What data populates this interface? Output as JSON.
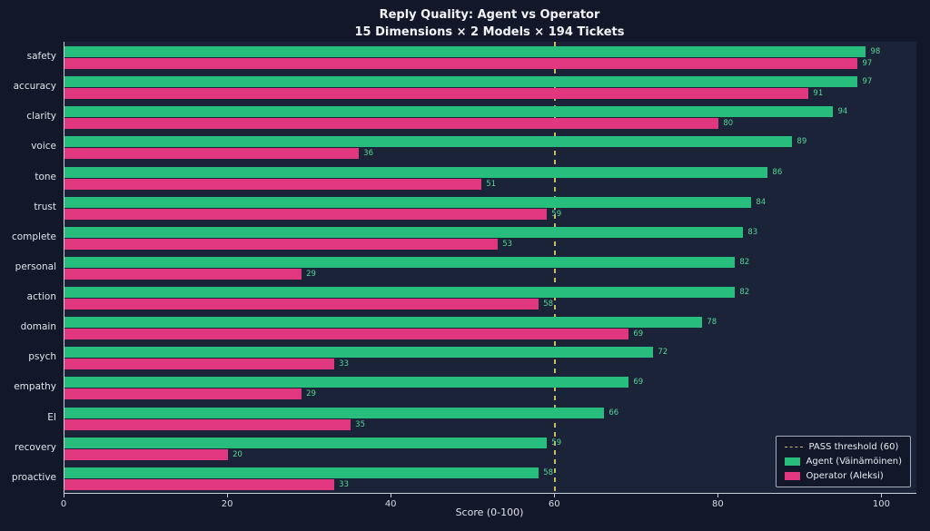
{
  "title": "Reply Quality: Agent vs Operator",
  "subtitle": "15 Dimensions × 2 Models × 194 Tickets",
  "chart_data": {
    "type": "bar",
    "orientation": "horizontal",
    "title": "Reply Quality: Agent vs Operator",
    "subtitle": "15 Dimensions × 2 Models × 194 Tickets",
    "xlabel": "Score (0-100)",
    "xlim": [
      0,
      100
    ],
    "xticks": [
      0,
      20,
      40,
      60,
      80,
      100
    ],
    "grid": false,
    "legend_position": "lower right",
    "value_label_color": "#56d795",
    "background_color": "#121829",
    "plot_background_color": "#1a2337",
    "categories": [
      "safety",
      "accuracy",
      "clarity",
      "voice",
      "tone",
      "trust",
      "complete",
      "personal",
      "action",
      "domain",
      "psych",
      "empathy",
      "EI",
      "recovery",
      "proactive"
    ],
    "series": [
      {
        "name": "Agent (Väinämöinen)",
        "color": "#27bd7c",
        "values": [
          98,
          97,
          94,
          89,
          86,
          84,
          83,
          82,
          82,
          78,
          72,
          69,
          66,
          59,
          58
        ]
      },
      {
        "name": "Operator (Aleksi)",
        "color": "#e1377e",
        "values": [
          97,
          91,
          80,
          36,
          51,
          59,
          53,
          29,
          58,
          69,
          33,
          29,
          35,
          20,
          33
        ]
      }
    ],
    "threshold": {
      "value": 60,
      "label": "PASS threshold (60)",
      "color": "#cdb85c"
    }
  }
}
